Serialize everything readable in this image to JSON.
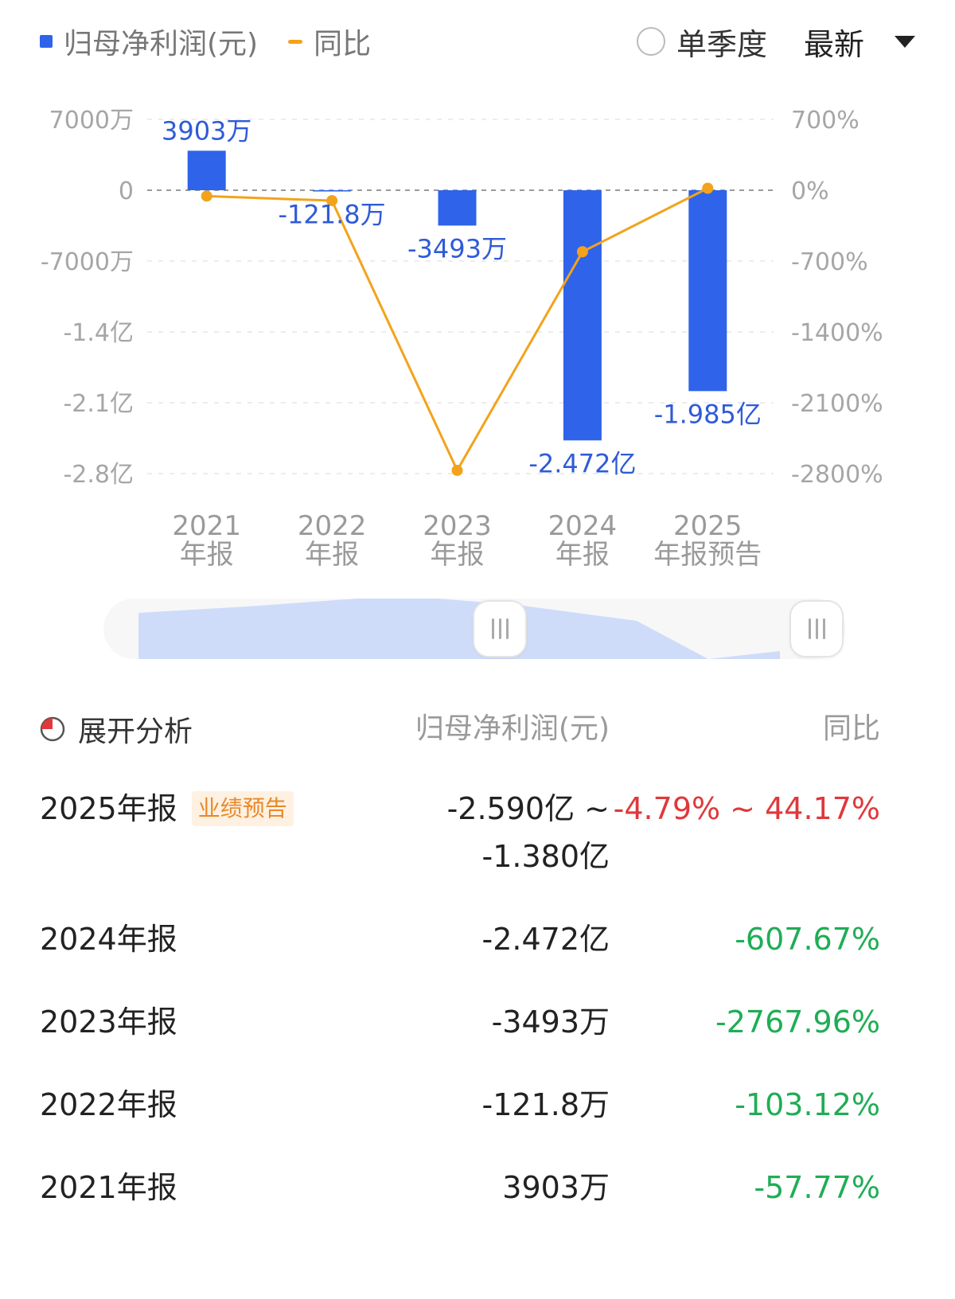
{
  "header": {
    "legend": {
      "bar_label": "归母净利润(元)",
      "line_label": "同比"
    },
    "radio_label": "单季度",
    "select_value": "最新"
  },
  "chart_data": {
    "type": "bar",
    "categories": [
      [
        "2021",
        "年报"
      ],
      [
        "2022",
        "年报"
      ],
      [
        "2023",
        "年报"
      ],
      [
        "2024",
        "年报"
      ],
      [
        "2025",
        "年报预告"
      ]
    ],
    "series": [
      {
        "name": "归母净利润(元)",
        "type": "bar",
        "values": [
          39030000,
          -1218000,
          -34930000,
          -247200000,
          -198500000
        ],
        "data_labels": [
          "3903万",
          "-121.8万",
          "-3493万",
          "-2.472亿",
          "-1.985亿"
        ],
        "color": "#2f63ea"
      },
      {
        "name": "同比",
        "type": "line",
        "values": [
          -57.77,
          -103.12,
          -2767.96,
          -607.67,
          19.69
        ],
        "color": "#f2a31b"
      }
    ],
    "y_left": {
      "ticks": [
        70000000,
        0,
        -70000000,
        -140000000,
        -210000000,
        -280000000
      ],
      "tick_labels": [
        "7000万",
        "0",
        "-7000万",
        "-1.4亿",
        "-2.1亿",
        "-2.8亿"
      ]
    },
    "y_right": {
      "ticks": [
        700,
        0,
        -700,
        -1400,
        -2100,
        -2800
      ],
      "tick_labels": [
        "700%",
        "0%",
        "-700%",
        "-1400%",
        "-2100%",
        "-2800%"
      ]
    },
    "grid": true,
    "legend_position": "top-left"
  },
  "table": {
    "header": {
      "expand_label": "展开分析",
      "col_value": "归母净利润(元)",
      "col_yoy": "同比"
    },
    "rows": [
      {
        "period": "2025年报",
        "badge": "业绩预告",
        "value": "-2.590亿 ~",
        "value2": "-1.380亿",
        "yoy": "-4.79% ~ 44.17%",
        "trend": "pos"
      },
      {
        "period": "2024年报",
        "badge": "",
        "value": "-2.472亿",
        "value2": "",
        "yoy": "-607.67%",
        "trend": "neg"
      },
      {
        "period": "2023年报",
        "badge": "",
        "value": "-3493万",
        "value2": "",
        "yoy": "-2767.96%",
        "trend": "neg"
      },
      {
        "period": "2022年报",
        "badge": "",
        "value": "-121.8万",
        "value2": "",
        "yoy": "-103.12%",
        "trend": "neg"
      },
      {
        "period": "2021年报",
        "badge": "",
        "value": "3903万",
        "value2": "",
        "yoy": "-57.77%",
        "trend": "neg"
      }
    ]
  },
  "colors": {
    "bar": "#2f63ea",
    "line": "#f2a31b",
    "up": "#e0383b",
    "down": "#1fad55",
    "badge": "#e8892b"
  }
}
